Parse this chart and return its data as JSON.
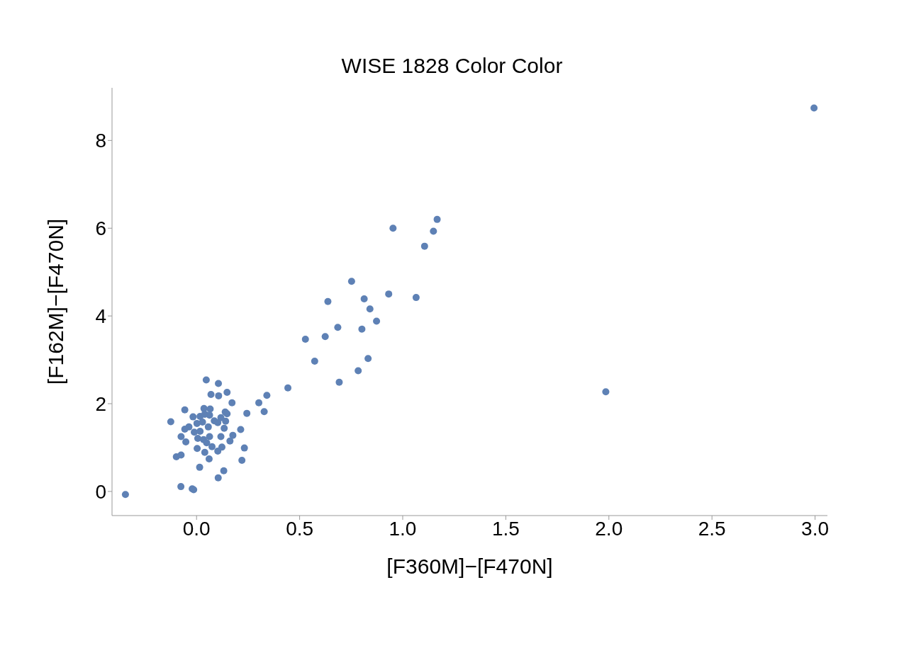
{
  "chart_data": {
    "type": "scatter",
    "title": "WISE 1828 Color Color",
    "xlabel": "[F360M]−[F470N]",
    "ylabel": "[F162M]−[F470N]",
    "x": [
      2.995,
      1.985,
      -0.345,
      0.953,
      1.167,
      1.149,
      1.106,
      0.752,
      0.932,
      1.065,
      0.813,
      0.637,
      0.841,
      0.873,
      0.685,
      0.802,
      0.624,
      0.528,
      0.573,
      0.832,
      0.784,
      0.692,
      0.443,
      0.047,
      0.106,
      0.148,
      0.07,
      0.107,
      0.172,
      0.341,
      0.302,
      0.328,
      0.244,
      -0.057,
      0.036,
      0.066,
      0.139,
      0.148,
      -0.017,
      0.017,
      0.04,
      0.063,
      -0.125,
      0.002,
      0.029,
      0.086,
      0.118,
      0.103,
      0.141,
      0.057,
      0.134,
      -0.037,
      -0.057,
      0.214,
      -0.075,
      -0.011,
      0.017,
      0.063,
      0.118,
      0.176,
      -0.052,
      0.006,
      0.034,
      0.049,
      0.162,
      0.232,
      0.003,
      0.075,
      0.123,
      0.103,
      0.04,
      -0.098,
      -0.075,
      0.061,
      0.22,
      0.015,
      0.132,
      0.105,
      -0.076,
      -0.021,
      -0.014
    ],
    "series": [
      {
        "color": "#5e81b5",
        "values": [
          8.74,
          2.27,
          -0.07,
          6.0,
          6.2,
          5.93,
          5.59,
          4.79,
          4.5,
          4.42,
          4.39,
          4.33,
          4.16,
          3.88,
          3.74,
          3.7,
          3.53,
          3.47,
          2.97,
          3.03,
          2.75,
          2.49,
          2.36,
          2.54,
          2.46,
          2.26,
          2.21,
          2.18,
          2.02,
          2.19,
          2.02,
          1.82,
          1.78,
          1.86,
          1.89,
          1.88,
          1.81,
          1.77,
          1.7,
          1.71,
          1.76,
          1.74,
          1.59,
          1.55,
          1.58,
          1.61,
          1.68,
          1.57,
          1.6,
          1.47,
          1.44,
          1.47,
          1.42,
          1.41,
          1.25,
          1.35,
          1.37,
          1.25,
          1.25,
          1.28,
          1.13,
          1.21,
          1.18,
          1.11,
          1.15,
          0.99,
          0.98,
          1.02,
          1.01,
          0.92,
          0.89,
          0.79,
          0.83,
          0.74,
          0.71,
          0.55,
          0.47,
          0.31,
          0.11,
          0.06,
          0.04
        ]
      }
    ],
    "xlim": [
      -0.41,
      3.06
    ],
    "ylim": [
      -0.55,
      9.2
    ],
    "xticks": [
      {
        "value": 0,
        "label": "0.0"
      },
      0.5,
      {
        "value": 1,
        "label": "1.0"
      },
      1.5,
      {
        "value": 2,
        "label": "2.0"
      },
      2.5,
      {
        "value": 3,
        "label": "3.0"
      }
    ],
    "yticks": [
      0,
      2,
      4,
      6,
      8
    ],
    "grid": false,
    "marker": "circle"
  }
}
